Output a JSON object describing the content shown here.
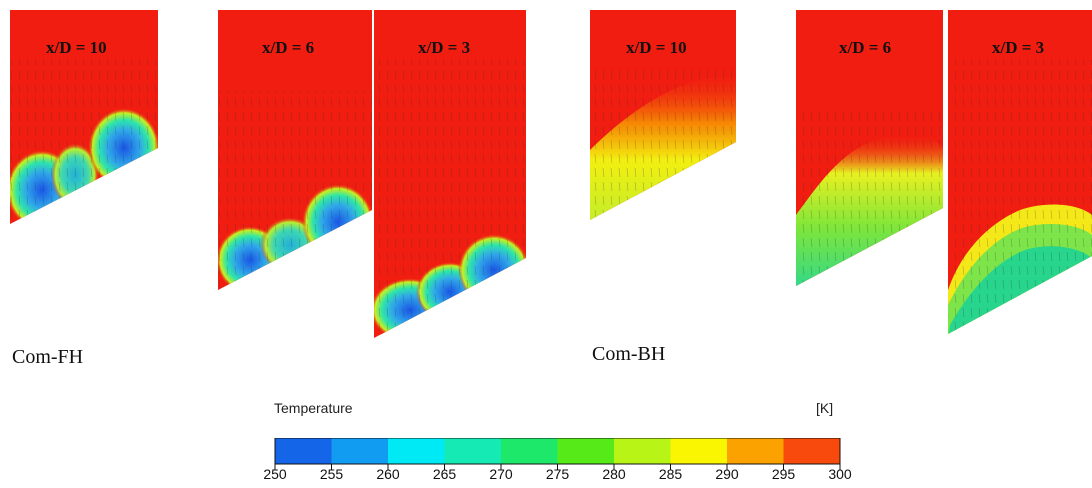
{
  "panels": [
    {
      "id": "fh-10",
      "label": "x/D = 10"
    },
    {
      "id": "fh-6",
      "label": "x/D = 6"
    },
    {
      "id": "fh-3",
      "label": "x/D = 3"
    },
    {
      "id": "bh-10",
      "label": "x/D = 10"
    },
    {
      "id": "bh-6",
      "label": "x/D = 6"
    },
    {
      "id": "bh-3",
      "label": "x/D = 3"
    }
  ],
  "cases": {
    "left": "Com-FH",
    "right": "Com-BH"
  },
  "legend": {
    "title": "Temperature",
    "unit": "[K]",
    "ticks": [
      "250",
      "255",
      "260",
      "265",
      "270",
      "275",
      "280",
      "285",
      "290",
      "295",
      "300"
    ],
    "colors": [
      "#1565e8",
      "#119cf2",
      "#00eaf5",
      "#16eab4",
      "#1ee86a",
      "#55ea18",
      "#b8f516",
      "#faf500",
      "#fba200",
      "#f84a0c"
    ]
  },
  "colors": {
    "hot": "#f11d10",
    "cold": "#1a50e0",
    "mid": "#23d88a",
    "warm": "#f5f000"
  }
}
